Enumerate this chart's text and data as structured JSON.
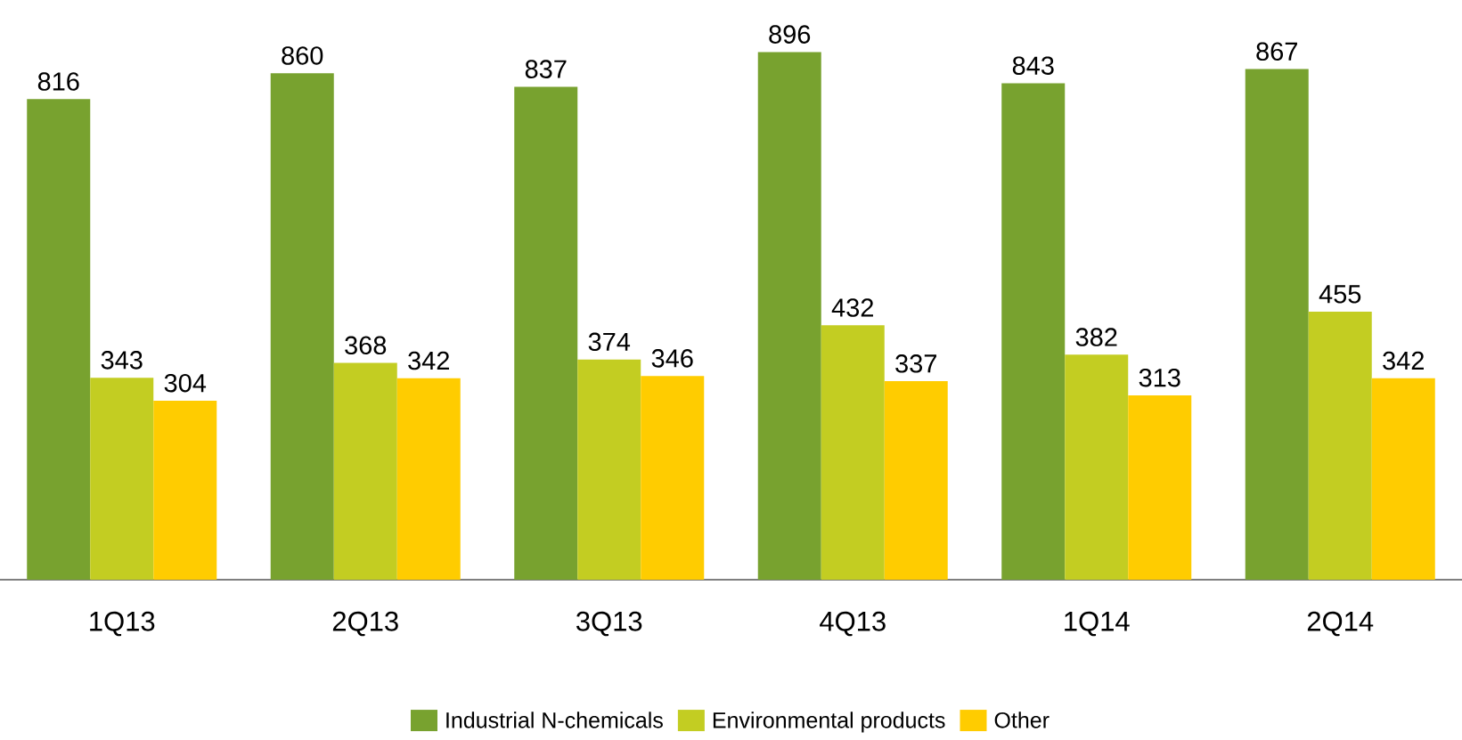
{
  "chart_data": {
    "type": "bar",
    "categories": [
      "1Q13",
      "2Q13",
      "3Q13",
      "4Q13",
      "1Q14",
      "2Q14"
    ],
    "series": [
      {
        "name": "Industrial N-chemicals",
        "color": "#78a22f",
        "values": [
          816,
          860,
          837,
          896,
          843,
          867
        ]
      },
      {
        "name": "Environmental products",
        "color": "#c3cd22",
        "values": [
          343,
          368,
          374,
          432,
          382,
          455
        ]
      },
      {
        "name": "Other",
        "color": "#ffcc00",
        "values": [
          304,
          342,
          346,
          337,
          313,
          342
        ]
      }
    ],
    "data_labels": true,
    "legend": "bottom",
    "grid": false
  }
}
